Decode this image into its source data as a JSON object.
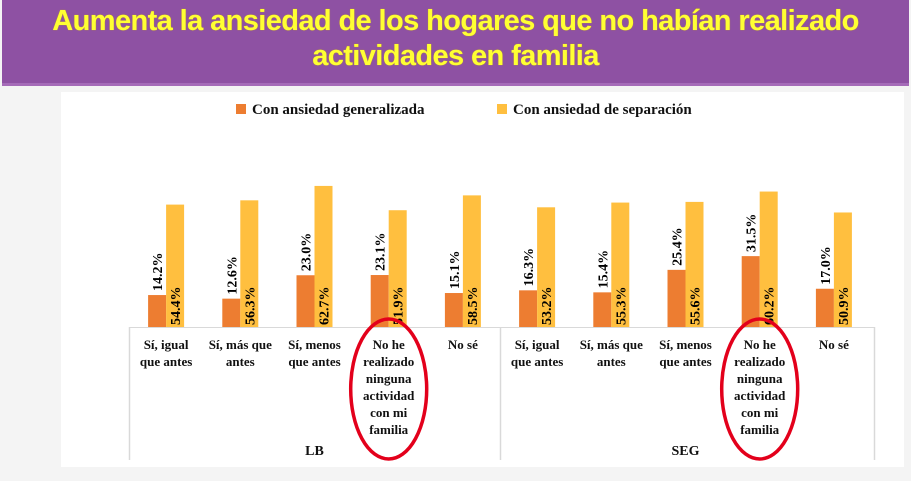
{
  "banner": {
    "title_line1": "Aumenta la ansiedad de los hogares que no habían realizado",
    "title_line2": "actividades en familia"
  },
  "colors": {
    "banner_bg": "#8e51a3",
    "title_text": "#ffff33",
    "series_generalizada": "#ed7d31",
    "series_separacion": "#ffbf3f",
    "highlight_ellipse": "#e3001b"
  },
  "chart_data": {
    "type": "bar",
    "title": "",
    "xlabel": "",
    "ylabel": "",
    "ylim": [
      0,
      100
    ],
    "grid": false,
    "legend": {
      "position": "top-center"
    },
    "groups": [
      {
        "label": "LB",
        "categories": [
          "Sí, igual que antes",
          "Sí, más que antes",
          "Sí, menos que antes",
          "No he realizado ninguna actividad con mi familia",
          "No sé"
        ]
      },
      {
        "label": "SEG",
        "categories": [
          "Sí, igual que antes",
          "Sí, más que antes",
          "Sí, menos que antes",
          "No he realizado ninguna actividad con mi familia",
          "No sé"
        ]
      }
    ],
    "category_label_lines": [
      [
        "Sí, igual",
        "que antes"
      ],
      [
        "Sí, más que",
        "antes"
      ],
      [
        "Sí, menos",
        "que antes"
      ],
      [
        "No he",
        "realizado",
        "ninguna",
        "actividad",
        "con mi",
        "familia"
      ],
      [
        "No sé"
      ]
    ],
    "series": [
      {
        "name": "Con ansiedad generalizada",
        "color": "#ed7d31",
        "values": [
          14.2,
          12.6,
          23.0,
          23.1,
          15.1,
          16.3,
          15.4,
          25.4,
          31.5,
          17.0
        ],
        "labels": [
          "14.2%",
          "12.6%",
          "23.0%",
          "23.1%",
          "15.1%",
          "16.3%",
          "15.4%",
          "25.4%",
          "31.5%",
          "17.0%"
        ]
      },
      {
        "name": "Con ansiedad de separación",
        "color": "#ffbf3f",
        "values": [
          54.4,
          56.3,
          62.7,
          51.9,
          58.5,
          53.2,
          55.3,
          55.6,
          60.2,
          50.9
        ],
        "labels": [
          "54.4%",
          "56.3%",
          "62.7%",
          "51.9%",
          "58.5%",
          "53.2%",
          "55.3%",
          "55.6%",
          "60.2%",
          "50.9%"
        ]
      }
    ],
    "annotations": [
      {
        "type": "ellipse",
        "target": "LB / No he realizado ninguna actividad con mi familia"
      },
      {
        "type": "ellipse",
        "target": "SEG / No he realizado ninguna actividad con mi familia"
      }
    ]
  }
}
